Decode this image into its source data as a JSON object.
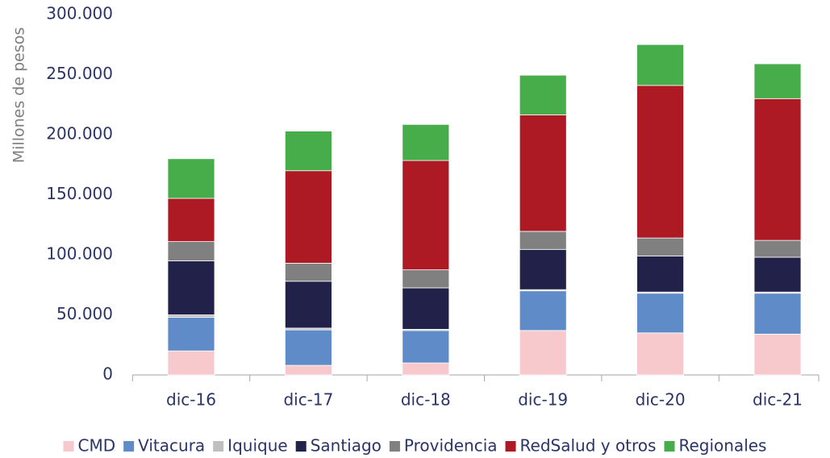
{
  "chart_data": {
    "type": "stacked_bar",
    "y_label": "Millones de pesos",
    "categories": [
      "dic-16",
      "dic-17",
      "dic-18",
      "dic-19",
      "dic-20",
      "dic-21"
    ],
    "series": [
      {
        "name": "CMD",
        "color": "#f7c9cd",
        "values": [
          20000,
          8000,
          10000,
          37000,
          35000,
          34000
        ]
      },
      {
        "name": "Vitacura",
        "color": "#5f8bc8",
        "values": [
          28000,
          29500,
          27000,
          33000,
          33000,
          34000
        ]
      },
      {
        "name": "Iquique",
        "color": "#bfbfbf",
        "values": [
          2000,
          1500,
          1000,
          1000,
          1000,
          1000
        ]
      },
      {
        "name": "Santiago",
        "color": "#21214a",
        "values": [
          45000,
          39000,
          34500,
          33500,
          30000,
          29000
        ]
      },
      {
        "name": "Providencia",
        "color": "#808080",
        "values": [
          16000,
          15000,
          15000,
          15000,
          15000,
          14000
        ]
      },
      {
        "name": "RedSalud y otros",
        "color": "#ad1a24",
        "values": [
          36000,
          77000,
          91000,
          97000,
          127000,
          118000
        ]
      },
      {
        "name": "Regionales",
        "color": "#46ad4a",
        "values": [
          33000,
          33000,
          30000,
          33000,
          34000,
          29000
        ]
      }
    ],
    "ylim": [
      0,
      300000
    ],
    "yticks": [
      0,
      {
        "value": 50000,
        "label": "50.000"
      },
      {
        "value": 100000,
        "label": "100.000"
      },
      {
        "value": 150000,
        "label": "150.000"
      },
      {
        "value": 200000,
        "label": "200.000"
      },
      {
        "value": 250000,
        "label": "250.000"
      },
      {
        "value": 300000,
        "label": "300.000"
      }
    ],
    "legend": "bottom"
  }
}
